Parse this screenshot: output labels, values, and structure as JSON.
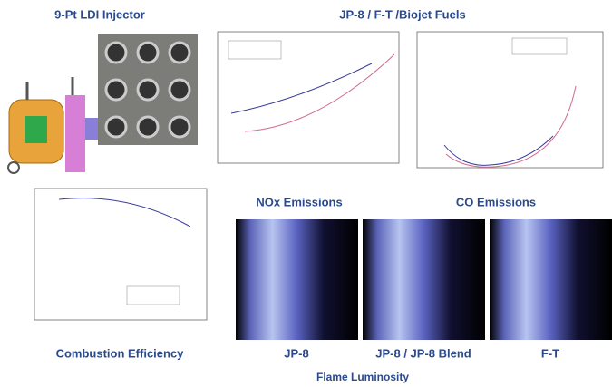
{
  "header": {
    "injector_title": "9-Pt LDI Injector",
    "fuels_title": "JP-8 / F-T /Biojet Fuels"
  },
  "panels": {
    "nox_title": "NOx Emissions",
    "co_title": "CO Emissions",
    "efficiency_title": "Combustion Efficiency"
  },
  "flames": {
    "captions": [
      "JP-8",
      "JP-8 / JP-8 Blend",
      "F-T"
    ],
    "title": "Flame Luminosity"
  }
}
